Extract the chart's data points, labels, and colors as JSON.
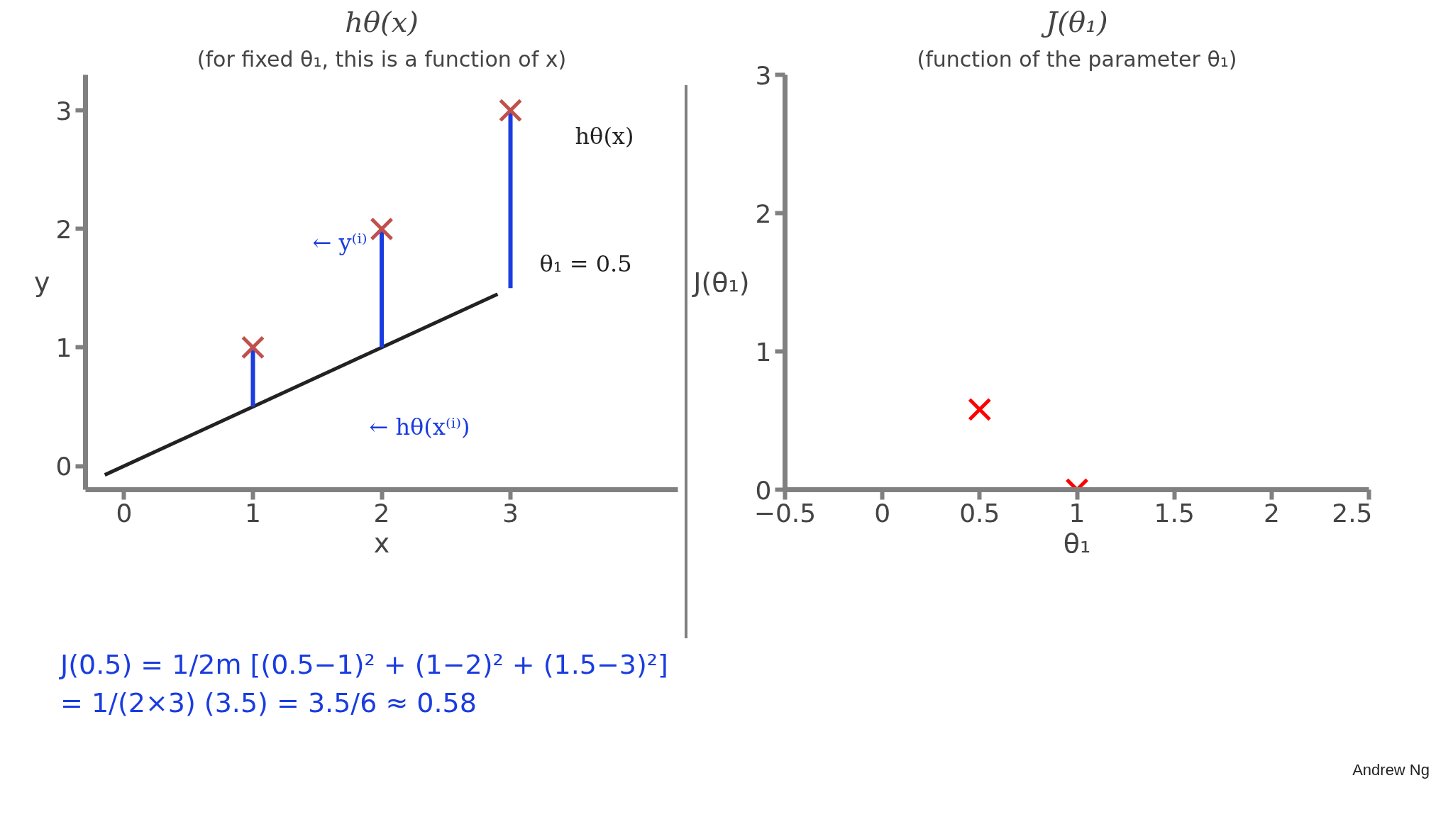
{
  "chart_data": [
    {
      "type": "scatter",
      "title": "hθ(x)",
      "subtitle": "(for fixed θ₁, this is a function of x)",
      "xlabel": "x",
      "ylabel": "y",
      "xlim": [
        -0.3,
        4.3
      ],
      "ylim": [
        -0.2,
        3.3
      ],
      "xticks": [
        0,
        1,
        2,
        3
      ],
      "yticks": [
        0,
        1,
        2,
        3
      ],
      "grid": false,
      "series": [
        {
          "type": "line",
          "color": "#222222",
          "x": [
            -0.15,
            2.9
          ],
          "values": [
            -0.075,
            1.45
          ],
          "line_style": "solid"
        },
        {
          "type": "line",
          "color": "#1a3ce0",
          "x": [
            1,
            1
          ],
          "values": [
            0.5,
            1
          ],
          "line_style": "solid"
        },
        {
          "type": "line",
          "color": "#1a3ce0",
          "x": [
            2,
            2
          ],
          "values": [
            1,
            2
          ],
          "line_style": "solid"
        },
        {
          "type": "line",
          "color": "#1a3ce0",
          "x": [
            3,
            3
          ],
          "values": [
            1.5,
            3
          ],
          "line_style": "solid"
        },
        {
          "color": "#c0504d",
          "x": [
            1,
            2,
            3
          ],
          "values": [
            1,
            2,
            3
          ],
          "marker": "cross"
        }
      ],
      "annotations": [
        "hθ(x)",
        "θ₁ = 0.5",
        "← y⁽ⁱ⁾",
        "← hθ(x⁽ⁱ⁾)",
        "J(0.5) = 1/2m [(0.5−1)² + (1−2)² + (1.5−3)²]",
        "= 1/(2×3) (3.5) = 3.5/6 ≈ 0.58"
      ]
    },
    {
      "type": "scatter",
      "title": "J(θ₁)",
      "subtitle": "(function of the parameter θ₁)",
      "xlabel": "θ₁",
      "ylabel": "J(θ₁)",
      "xlim": [
        -0.5,
        2.5
      ],
      "ylim": [
        0,
        3
      ],
      "xticks": [
        -0.5,
        0,
        0.5,
        1,
        1.5,
        2,
        2.5
      ],
      "yticks": [
        0,
        1,
        2,
        3
      ],
      "grid": false,
      "series": [
        {
          "color": "#ff0000",
          "x": [
            0.5,
            1
          ],
          "values": [
            0.58,
            0
          ],
          "marker": "cross"
        }
      ],
      "annotations": [
        "Andrew Ng"
      ]
    }
  ]
}
